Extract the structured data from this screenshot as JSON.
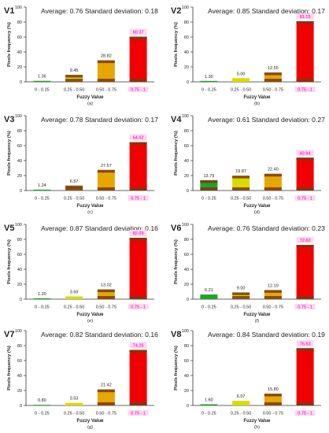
{
  "chart_data": [
    {
      "type": "bar",
      "panel_id": "V1",
      "title": "Average: 0.76  Standard deviation: 0.18",
      "categories": [
        "0 - 0.25",
        "0.25 - 0.50",
        "0.50 - 0.75",
        "0.75 - 1"
      ],
      "values": [
        1.36,
        9.45,
        28.82,
        60.37
      ],
      "value_labels": [
        "1.36",
        "9.45",
        "28.82",
        "60.37"
      ],
      "ylabel": "Pixels frequency (%)",
      "xlabel": "Fuzzy Value",
      "caption": "(a)",
      "ylim": [
        0,
        100
      ],
      "yticks": [
        0,
        20,
        40,
        60,
        80,
        100
      ],
      "colors": [
        "#1fa32a",
        "#dada00",
        "#e6a800",
        "#f00000"
      ]
    },
    {
      "type": "bar",
      "panel_id": "V2",
      "title": "Average: 0.85  Standard deviation: 0.17",
      "categories": [
        "0 - 0.25",
        "0.25 - 0.50",
        "0.50 - 0.75",
        "0.75 - 1"
      ],
      "values": [
        1.3,
        5.0,
        12.55,
        81.15
      ],
      "value_labels": [
        "1.30",
        "5.00",
        "12.55",
        "81.15"
      ],
      "ylabel": "Pixels frequency (%)",
      "xlabel": "Fuzzy Value",
      "caption": "(b)",
      "ylim": [
        0,
        100
      ],
      "yticks": [
        0,
        20,
        40,
        60,
        80,
        100
      ],
      "colors": [
        "#1fa32a",
        "#dada00",
        "#e6a800",
        "#f00000"
      ]
    },
    {
      "type": "bar",
      "panel_id": "V3",
      "title": "Average: 0.78  Standard deviation: 0.17",
      "categories": [
        "0 - 0.25",
        "0.25 - 0.50",
        "0.50 - 0.75",
        "0.75 - 1"
      ],
      "values": [
        1.24,
        6.57,
        27.57,
        64.62
      ],
      "value_labels": [
        "1.24",
        "6.57",
        "27.57",
        "64.62"
      ],
      "ylabel": "Pixels frequency (%)",
      "xlabel": "Fuzzy Value",
      "caption": "(c)",
      "ylim": [
        0,
        100
      ],
      "yticks": [
        0,
        20,
        40,
        60,
        80,
        100
      ],
      "colors": [
        "#1fa32a",
        "#dada00",
        "#e6a800",
        "#f00000"
      ]
    },
    {
      "type": "bar",
      "panel_id": "V4",
      "title": "Average: 0.61  Standard deviation: 0.27",
      "categories": [
        "0 - 0.25",
        "0.25 - 0.50",
        "0.50 - 0.75",
        "0.75 - 1"
      ],
      "values": [
        13.79,
        19.87,
        22.4,
        43.94
      ],
      "value_labels": [
        "13.79",
        "19.87",
        "22.40",
        "43.94"
      ],
      "ylabel": "Pixels frequency (%)",
      "xlabel": "Fuzzy Value",
      "caption": "(d)",
      "ylim": [
        0,
        100
      ],
      "yticks": [
        0,
        20,
        40,
        60,
        80,
        100
      ],
      "colors": [
        "#1fa32a",
        "#dada00",
        "#e6a800",
        "#f00000"
      ]
    },
    {
      "type": "bar",
      "panel_id": "V5",
      "title": "Average: 0.87  Standard deviation: 0.16",
      "categories": [
        "0 - 0.25",
        "0.25 - 0.50",
        "0.50 - 0.75",
        "0.75 - 1"
      ],
      "values": [
        1.2,
        3.69,
        13.02,
        82.09
      ],
      "value_labels": [
        "1.20",
        "3.69",
        "13.02",
        "82.09"
      ],
      "ylabel": "Pixels frequency (%)",
      "xlabel": "Fuzzy Value",
      "caption": "(e)",
      "ylim": [
        0,
        100
      ],
      "yticks": [
        0,
        20,
        40,
        60,
        80,
        100
      ],
      "colors": [
        "#1fa32a",
        "#dada00",
        "#e6a800",
        "#f00000"
      ]
    },
    {
      "type": "bar",
      "panel_id": "V6",
      "title": "Average: 0.76  Standard deviation: 0.23",
      "categories": [
        "0 - 0.25",
        "0.25 - 0.50",
        "0.50 - 0.75",
        "0.75 - 1"
      ],
      "values": [
        6.21,
        9.0,
        12.19,
        72.6
      ],
      "value_labels": [
        "6.21",
        "9.00",
        "12.19",
        "72.60"
      ],
      "ylabel": "Pixels frequency (%)",
      "xlabel": "Fuzzy Value",
      "caption": "(f)",
      "ylim": [
        0,
        100
      ],
      "yticks": [
        0,
        20,
        40,
        60,
        80,
        100
      ],
      "colors": [
        "#1fa32a",
        "#dada00",
        "#e6a800",
        "#f00000"
      ]
    },
    {
      "type": "bar",
      "panel_id": "V7",
      "title": "Average: 0.82  Standard deviation: 0.16",
      "categories": [
        "0 - 0.25",
        "0.25 - 0.50",
        "0.50 - 0.75",
        "0.75 - 1"
      ],
      "values": [
        0.8,
        3.53,
        21.42,
        74.26
      ],
      "value_labels": [
        "0.80",
        "3.53",
        "21.42",
        "74.26"
      ],
      "ylabel": "Pixels frequency (%)",
      "xlabel": "Fuzzy Value",
      "caption": "(g)",
      "ylim": [
        0,
        100
      ],
      "yticks": [
        0,
        20,
        40,
        60,
        80,
        100
      ],
      "colors": [
        "#1fa32a",
        "#dada00",
        "#e6a800",
        "#f00000"
      ]
    },
    {
      "type": "bar",
      "panel_id": "V8",
      "title": "Average: 0.84  Standard deviation: 0.19",
      "categories": [
        "0 - 0.25",
        "0.25 - 0.50",
        "0.50 - 0.75",
        "0.75 - 1"
      ],
      "values": [
        1.6,
        6.07,
        15.8,
        76.53
      ],
      "value_labels": [
        "1.60",
        "6.07",
        "15.80",
        "76.53"
      ],
      "ylabel": "Pixels frequency (%)",
      "xlabel": "Fuzzy Value",
      "caption": "(h)",
      "ylim": [
        0,
        100
      ],
      "yticks": [
        0,
        20,
        40,
        60,
        80,
        100
      ],
      "colors": [
        "#1fa32a",
        "#dada00",
        "#e6a800",
        "#f00000"
      ]
    }
  ],
  "style": {
    "bar_shadow_color": "#7a3a10",
    "label_highlight_color": "#ffd6f2",
    "last_category_label_color": "#e0009a",
    "axis_color": "#333333",
    "text_color": "#222222"
  }
}
